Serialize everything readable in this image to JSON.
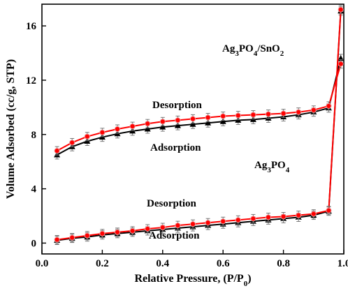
{
  "chart_data": {
    "type": "line",
    "xlabel": "Relative Pressure, (P/P0)",
    "ylabel": "Volume Adsorbed (cc/g, STP)",
    "xlim": [
      0.0,
      1.0
    ],
    "ylim": [
      -0.8,
      17.6
    ],
    "xticks": [
      "0.0",
      "0.2",
      "0.4",
      "0.6",
      "0.8",
      "1.0"
    ],
    "yticks": [
      "0",
      "4",
      "8",
      "12",
      "16"
    ],
    "grid": false,
    "colors": {
      "adsorption": "#000000",
      "desorption": "#ff0000"
    },
    "x": [
      0.05,
      0.1,
      0.15,
      0.2,
      0.25,
      0.3,
      0.35,
      0.4,
      0.45,
      0.5,
      0.55,
      0.6,
      0.65,
      0.7,
      0.75,
      0.8,
      0.85,
      0.9,
      0.95,
      0.99
    ],
    "series": [
      {
        "group": "Ag3PO4/SnO2",
        "kind": "adsorption",
        "marker": "triangle",
        "values": [
          6.5,
          7.1,
          7.5,
          7.8,
          8.05,
          8.25,
          8.4,
          8.55,
          8.65,
          8.75,
          8.85,
          8.95,
          9.05,
          9.1,
          9.2,
          9.3,
          9.45,
          9.65,
          9.95,
          13.6
        ]
      },
      {
        "group": "Ag3PO4/SnO2",
        "kind": "desorption",
        "marker": "circle",
        "values": [
          6.8,
          7.4,
          7.85,
          8.15,
          8.4,
          8.6,
          8.8,
          8.95,
          9.05,
          9.15,
          9.25,
          9.35,
          9.4,
          9.45,
          9.5,
          9.55,
          9.65,
          9.8,
          10.1,
          13.2
        ]
      },
      {
        "group": "Ag3PO4",
        "kind": "adsorption",
        "marker": "triangle",
        "values": [
          0.2,
          0.35,
          0.45,
          0.6,
          0.7,
          0.8,
          0.9,
          1.0,
          1.1,
          1.2,
          1.3,
          1.4,
          1.5,
          1.6,
          1.7,
          1.8,
          1.9,
          2.05,
          2.35,
          17.1
        ]
      },
      {
        "group": "Ag3PO4",
        "kind": "desorption",
        "marker": "circle",
        "values": [
          0.25,
          0.4,
          0.55,
          0.7,
          0.8,
          0.9,
          1.05,
          1.15,
          1.3,
          1.4,
          1.5,
          1.6,
          1.7,
          1.8,
          1.9,
          1.95,
          2.05,
          2.15,
          2.4,
          17.2
        ]
      }
    ],
    "annotations": [
      {
        "id": "label-composite",
        "text": "Ag3PO4/SnO2"
      },
      {
        "id": "desorption-upper",
        "text": "Desorption"
      },
      {
        "id": "adsorption-upper",
        "text": "Adsorption"
      },
      {
        "id": "label-pure",
        "text": "Ag3PO4"
      },
      {
        "id": "desorption-lower",
        "text": "Desorption"
      },
      {
        "id": "adsorption-lower",
        "text": "Adsorption"
      }
    ]
  }
}
